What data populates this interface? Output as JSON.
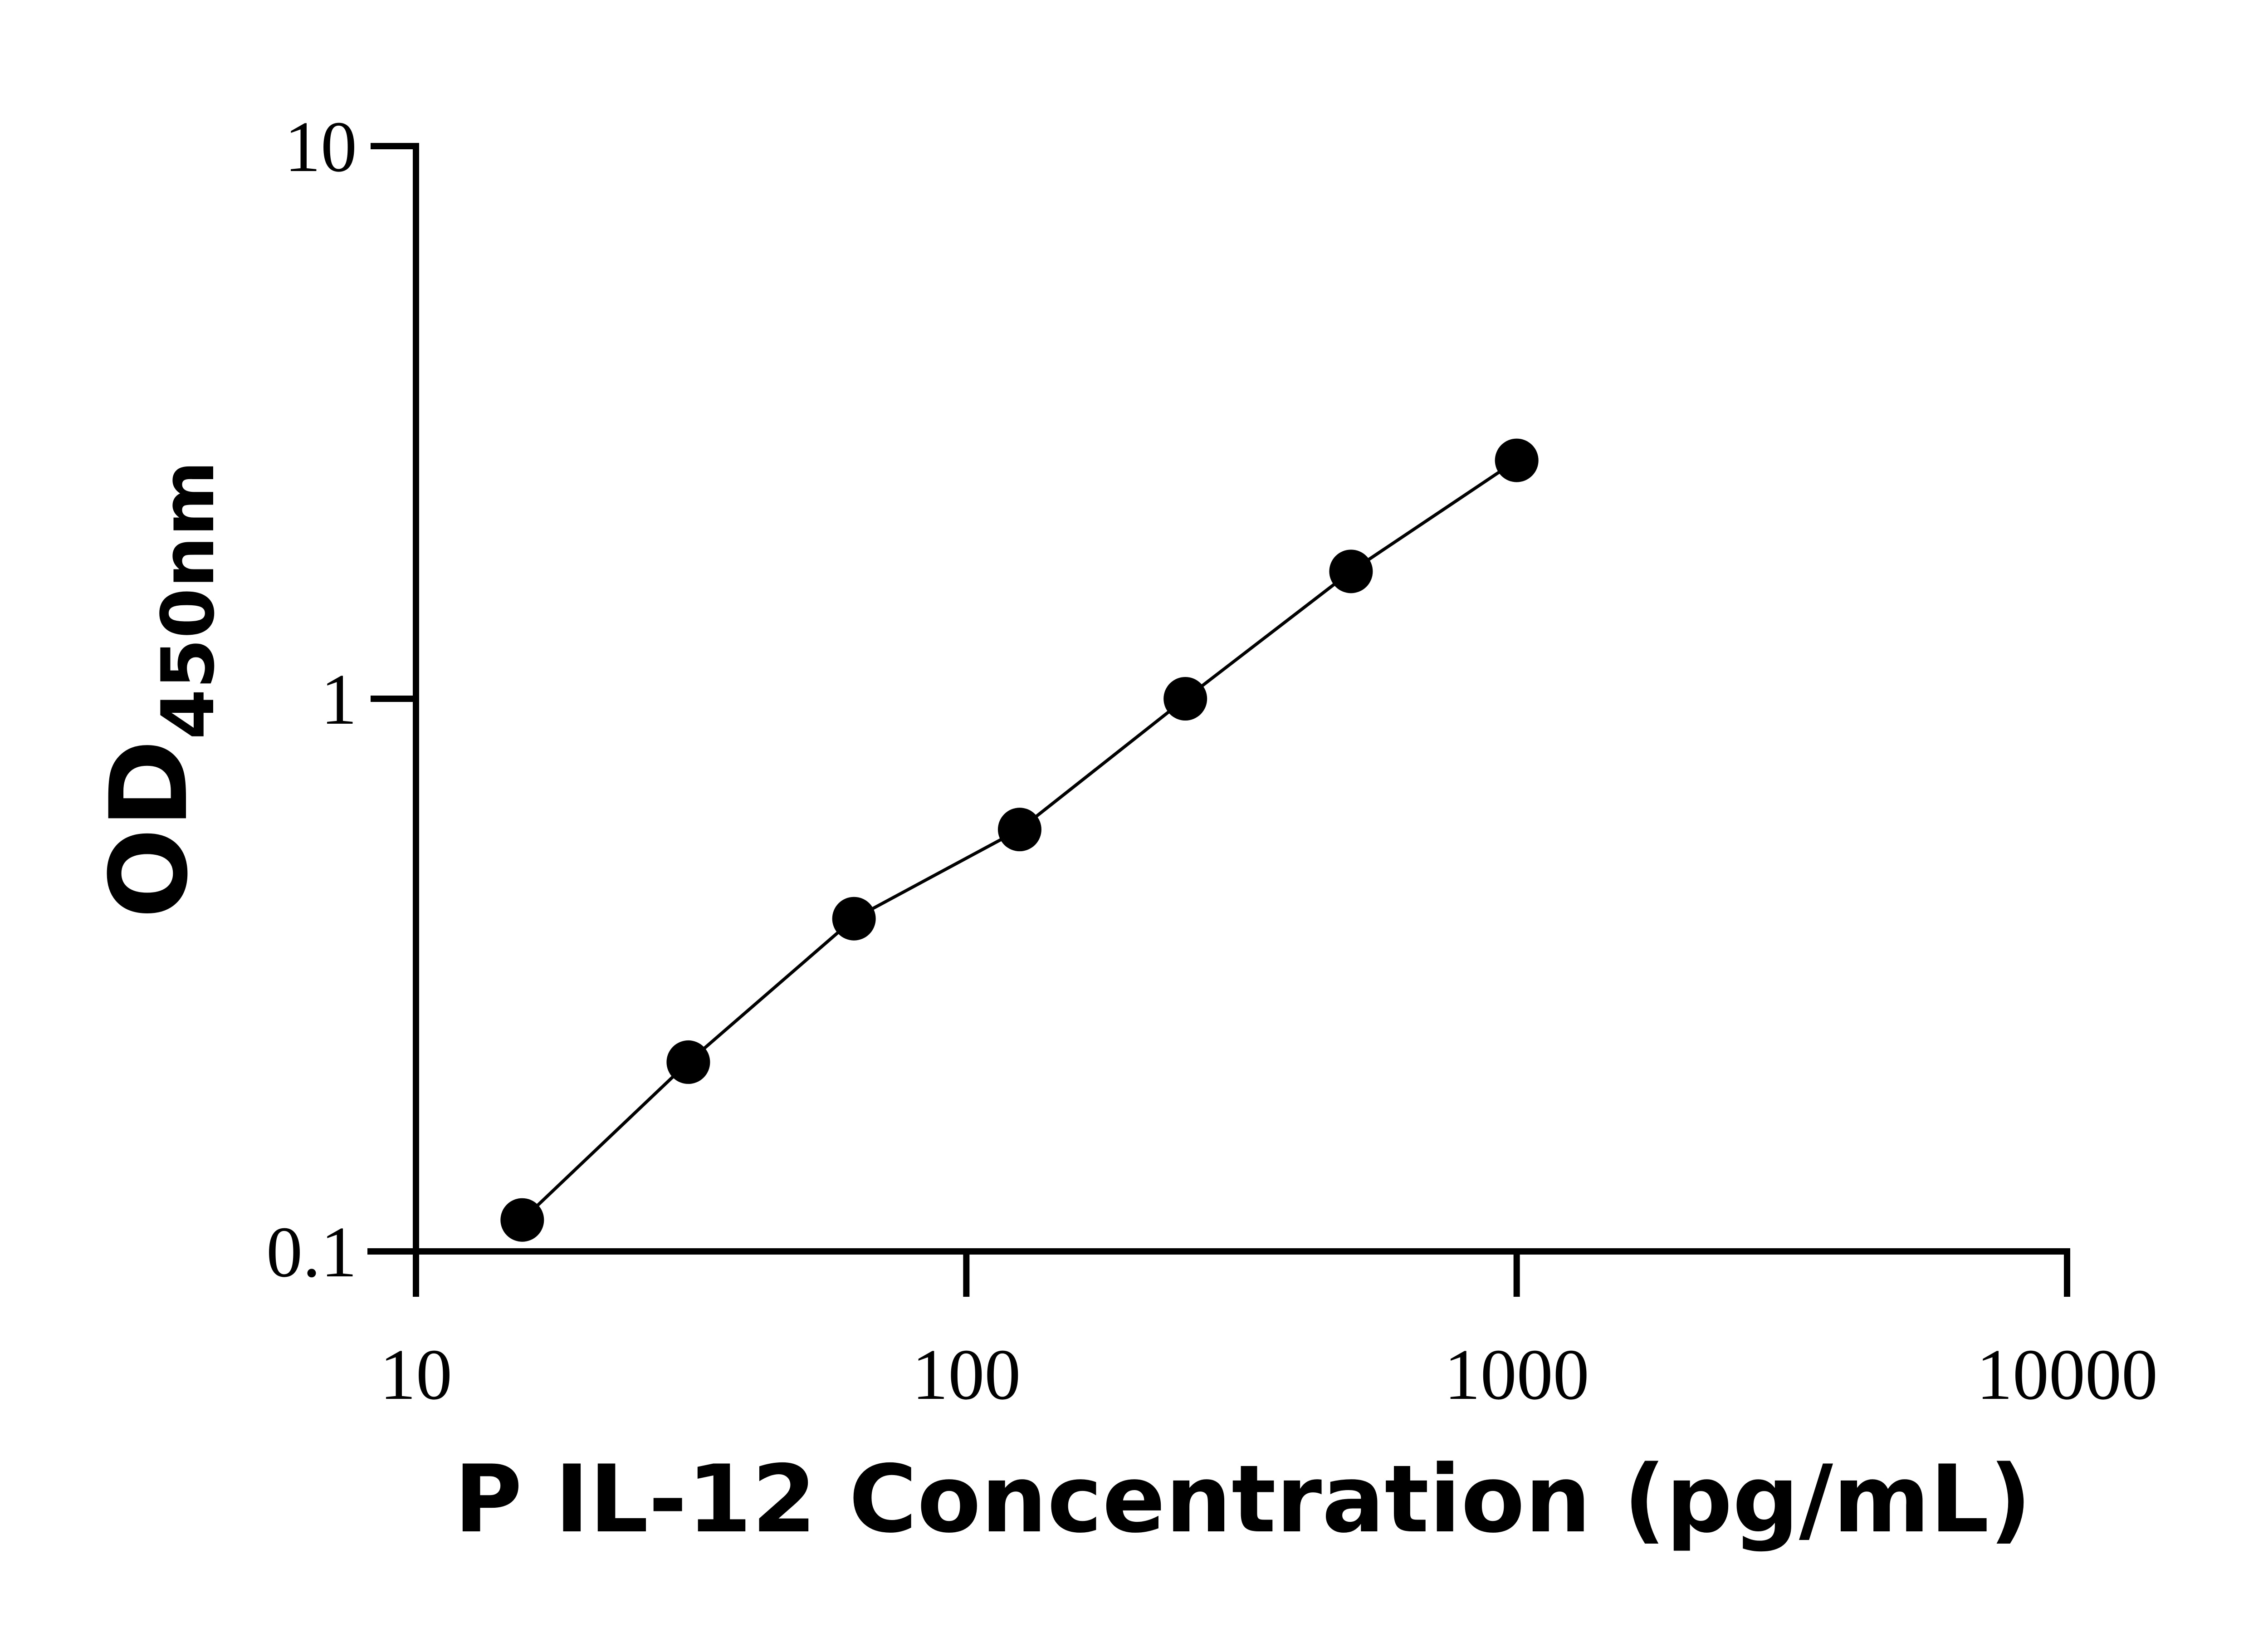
{
  "chart_data": {
    "type": "scatter",
    "xlabel": "P IL-12 Concentration (pg/mL)",
    "ylabel_main": "OD",
    "ylabel_subscript": "450nm",
    "x_scale": "log",
    "y_scale": "log",
    "xlim": [
      10,
      10000
    ],
    "ylim": [
      0.1,
      10
    ],
    "x_ticks": [
      "10",
      "100",
      "1000",
      "10000"
    ],
    "y_ticks": [
      "0.1",
      "1",
      "10"
    ],
    "grid": false,
    "series": [
      {
        "x": [
          15.6,
          31.25,
          62.5,
          125,
          250,
          500,
          1000
        ],
        "y": [
          0.114,
          0.22,
          0.4,
          0.58,
          1.0,
          1.7,
          2.7
        ],
        "color": "#000000",
        "marker": "circle",
        "connected": true
      }
    ]
  }
}
